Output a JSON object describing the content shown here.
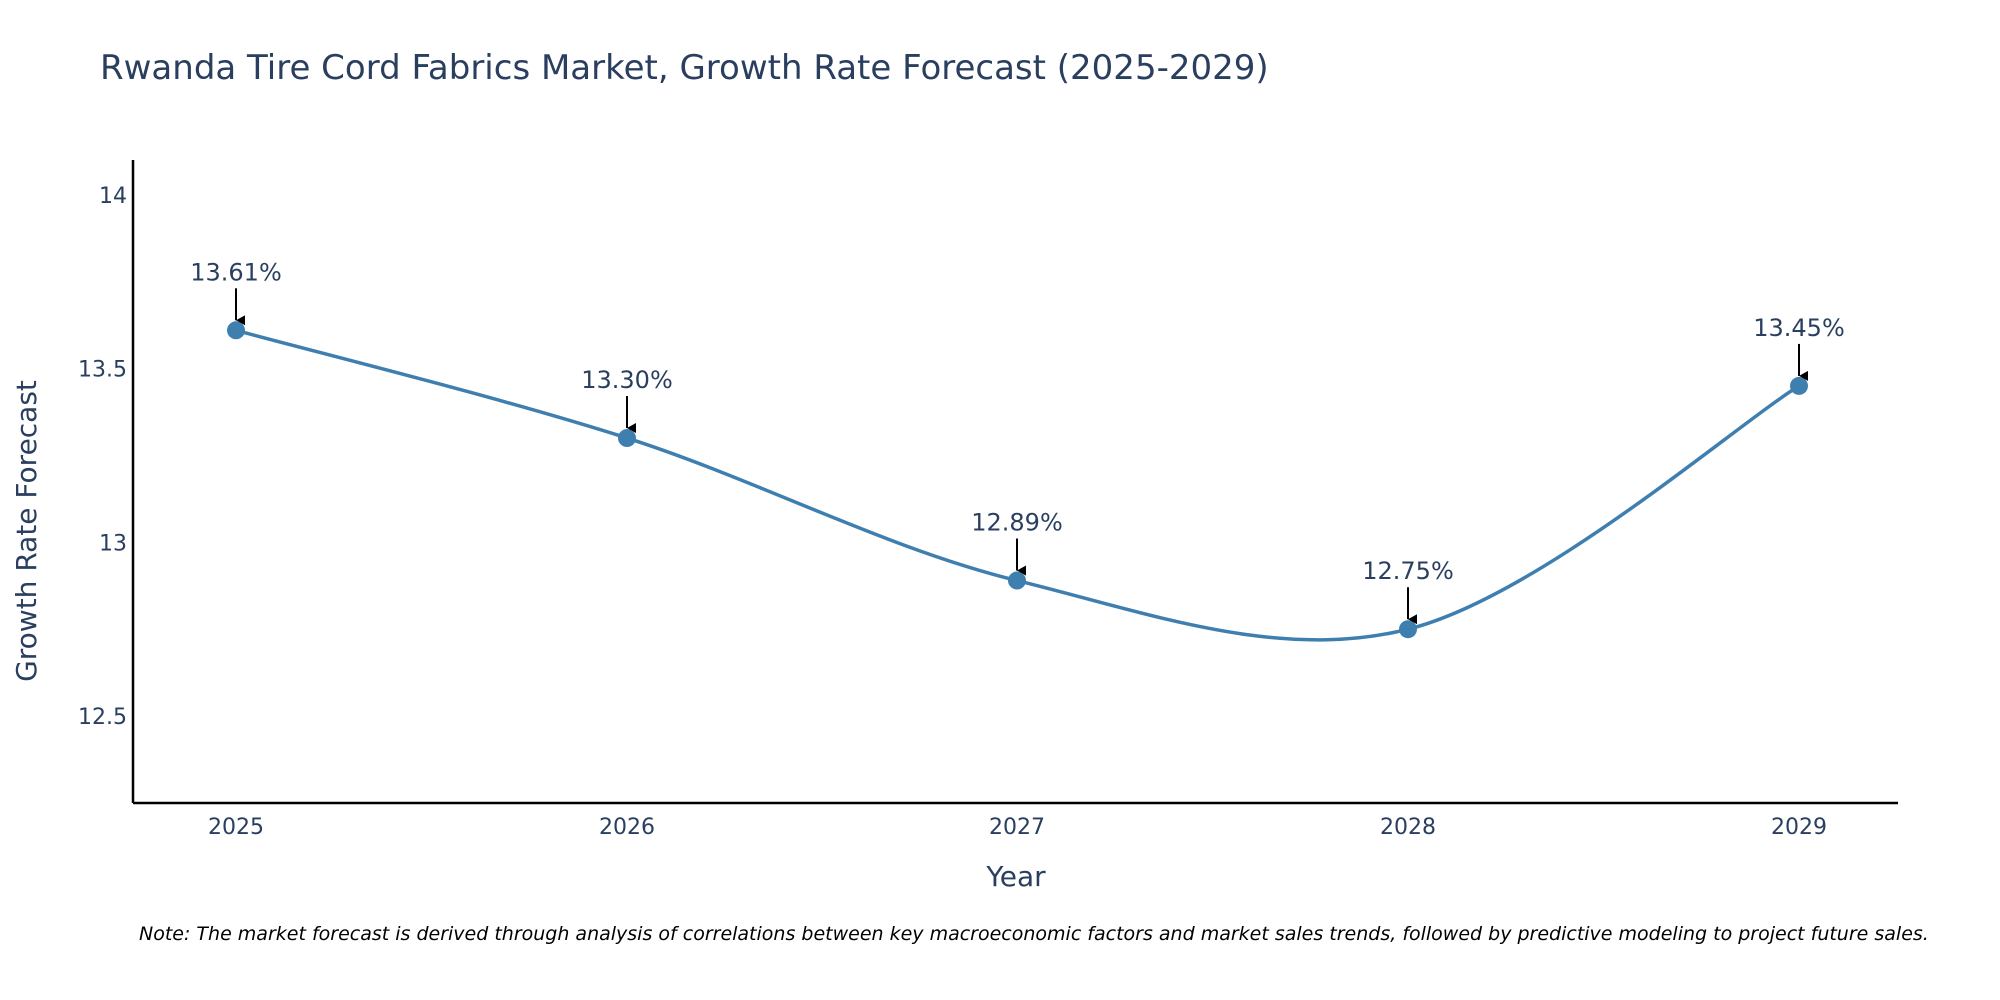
{
  "chart_data": {
    "type": "line",
    "title": "Rwanda Tire Cord Fabrics Market, Growth Rate Forecast (2025-2029)",
    "xlabel": "Year",
    "ylabel": "Growth Rate Forecast",
    "categories": [
      "2025",
      "2026",
      "2027",
      "2028",
      "2029"
    ],
    "series": [
      {
        "name": "Growth Rate Forecast",
        "values": [
          13.61,
          13.3,
          12.89,
          12.75,
          13.45
        ],
        "labels": [
          "13.61%",
          "13.30%",
          "12.89%",
          "12.75%",
          "13.45%"
        ]
      }
    ],
    "yticks": [
      "12.5",
      "13",
      "13.5",
      "14"
    ],
    "ytick_values": [
      12.5,
      13,
      13.5,
      14
    ],
    "ylim": [
      12.25,
      14.1
    ],
    "grid": false,
    "line_shape": "spline",
    "note": "Note: The market forecast is derived through analysis of correlations between key macroeconomic factors and market sales trends, followed by predictive modeling to project future sales.",
    "colors": {
      "line": "#3f7fb0",
      "marker": "#3f7fb0",
      "text": "#2a3f5f",
      "axis": "#000000",
      "arrow": "#000000"
    }
  }
}
